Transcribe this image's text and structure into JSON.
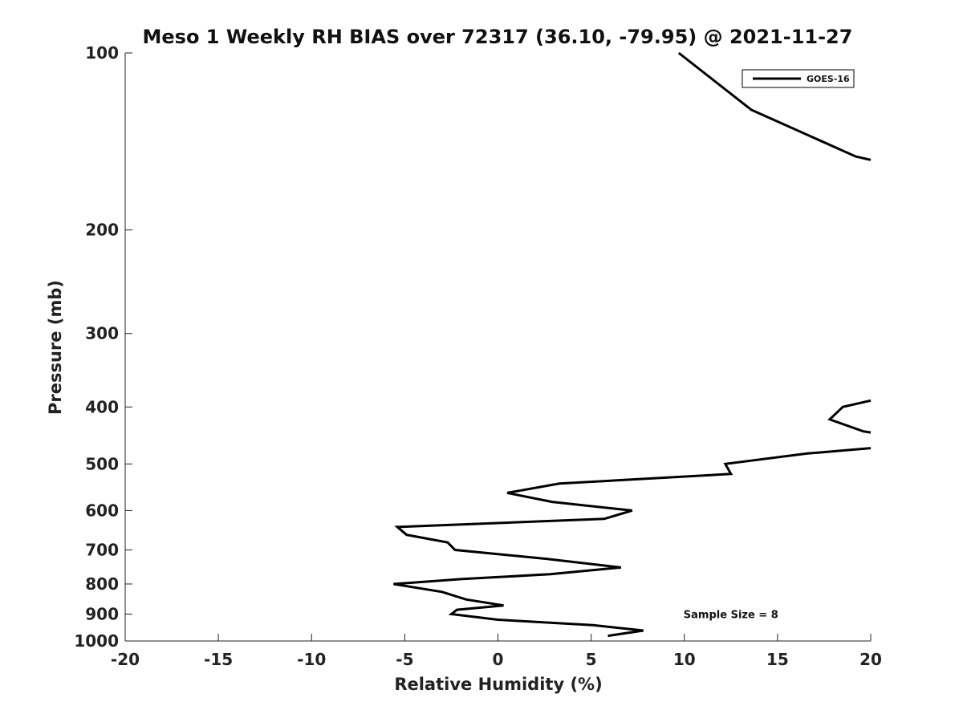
{
  "chart_data": {
    "type": "line",
    "title": "Meso 1 Weekly RH BIAS over 72317 (36.10, -79.95) @ 2021-11-27",
    "xlabel": "Relative Humidity (%)",
    "ylabel": "Pressure (mb)",
    "xlim": [
      -20,
      20
    ],
    "ylim": [
      1000,
      100
    ],
    "yscale": "log",
    "x_ticks": [
      -20,
      -15,
      -10,
      -5,
      0,
      5,
      10,
      15,
      20
    ],
    "x_tick_labels": [
      "-20",
      "-15",
      "-10",
      "-5",
      "0",
      "5",
      "10",
      "15",
      "20"
    ],
    "y_ticks": [
      100,
      200,
      300,
      400,
      500,
      600,
      700,
      800,
      900,
      1000
    ],
    "y_tick_labels": [
      "100",
      "200",
      "300",
      "400",
      "500",
      "600",
      "700",
      "800",
      "900",
      "1000"
    ],
    "grid": false,
    "legend_position": "top-right",
    "line_color": "#000000",
    "series": [
      {
        "name": "GOES-16",
        "segments": [
          [
            {
              "x": 9.7,
              "y": 100
            },
            {
              "x": 13.6,
              "y": 125
            },
            {
              "x": 19.2,
              "y": 150
            },
            {
              "x": 20.0,
              "y": 152
            }
          ],
          [
            {
              "x": 20.0,
              "y": 390
            },
            {
              "x": 18.5,
              "y": 400
            },
            {
              "x": 17.8,
              "y": 420
            },
            {
              "x": 19.6,
              "y": 440
            },
            {
              "x": 20.0,
              "y": 442
            }
          ],
          [
            {
              "x": 20.0,
              "y": 470
            },
            {
              "x": 16.6,
              "y": 480
            },
            {
              "x": 12.2,
              "y": 500
            },
            {
              "x": 12.5,
              "y": 520
            },
            {
              "x": 3.3,
              "y": 540
            },
            {
              "x": 0.5,
              "y": 560
            },
            {
              "x": 2.9,
              "y": 580
            },
            {
              "x": 7.2,
              "y": 600
            },
            {
              "x": 5.7,
              "y": 620
            },
            {
              "x": -5.4,
              "y": 640
            },
            {
              "x": -4.9,
              "y": 660
            },
            {
              "x": -2.7,
              "y": 680
            },
            {
              "x": -2.3,
              "y": 700
            },
            {
              "x": 2.6,
              "y": 725
            },
            {
              "x": 6.6,
              "y": 750
            },
            {
              "x": 2.8,
              "y": 770
            },
            {
              "x": -2.0,
              "y": 785
            },
            {
              "x": -5.6,
              "y": 800
            },
            {
              "x": -3.0,
              "y": 825
            },
            {
              "x": -1.7,
              "y": 850
            },
            {
              "x": 0.3,
              "y": 870
            },
            {
              "x": -2.2,
              "y": 885
            },
            {
              "x": -2.5,
              "y": 900
            },
            {
              "x": 0.0,
              "y": 920
            },
            {
              "x": 5.1,
              "y": 940
            },
            {
              "x": 7.8,
              "y": 960
            },
            {
              "x": 5.9,
              "y": 980
            }
          ]
        ]
      }
    ],
    "annotations": [
      {
        "text": "Sample Size = 8",
        "x": 12.5,
        "y": 900
      }
    ]
  }
}
